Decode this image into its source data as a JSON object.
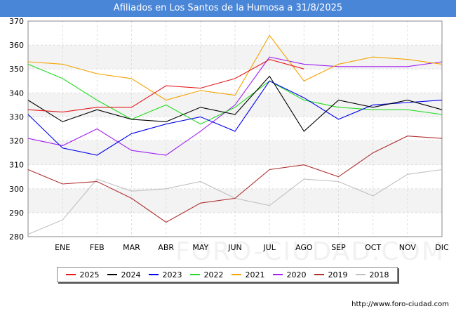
{
  "title": "Afiliados en Los Santos de la Humosa a 31/8/2025",
  "footer_url": "http://www.foro-ciudad.com",
  "watermark": "FORO-CIUDAD.COM",
  "chart_data": {
    "type": "line",
    "categories": [
      "",
      "ENE",
      "FEB",
      "MAR",
      "ABR",
      "MAY",
      "JUN",
      "JUL",
      "AGO",
      "SEP",
      "OCT",
      "NOV",
      "DIC"
    ],
    "ylim": [
      280,
      370
    ],
    "yticks": [
      280,
      290,
      300,
      310,
      320,
      330,
      340,
      350,
      360,
      370
    ],
    "grid": true,
    "legend_placement": "bottom",
    "series": [
      {
        "name": "2025",
        "color": "#e31a1c",
        "values": [
          333,
          332,
          334,
          334,
          343,
          342,
          346,
          354,
          350,
          null,
          null,
          null,
          null
        ]
      },
      {
        "name": "2024",
        "color": "#000000",
        "values": [
          337,
          328,
          333,
          329,
          328,
          334,
          331,
          347,
          324,
          337,
          334,
          337,
          333
        ]
      },
      {
        "name": "2023",
        "color": "#0000ee",
        "values": [
          331,
          317,
          314,
          323,
          327,
          330,
          324,
          345,
          338,
          329,
          335,
          336,
          337
        ]
      },
      {
        "name": "2022",
        "color": "#22dd22",
        "values": [
          352,
          346,
          337,
          329,
          335,
          327,
          334,
          345,
          337,
          334,
          333,
          333,
          331
        ]
      },
      {
        "name": "2021",
        "color": "#f5a300",
        "values": [
          353,
          352,
          348,
          346,
          337,
          341,
          339,
          364,
          345,
          352,
          355,
          354,
          352
        ]
      },
      {
        "name": "2020",
        "color": "#a020f0",
        "values": [
          321,
          318,
          325,
          316,
          314,
          324,
          335,
          355,
          352,
          351,
          351,
          351,
          353
        ]
      },
      {
        "name": "2019",
        "color": "#b03030",
        "values": [
          308,
          302,
          303,
          296,
          286,
          294,
          296,
          308,
          310,
          305,
          315,
          322,
          321
        ]
      },
      {
        "name": "2018",
        "color": "#c0c0c0",
        "values": [
          281,
          287,
          304,
          299,
          300,
          303,
          296,
          293,
          304,
          303,
          297,
          306,
          308
        ]
      }
    ]
  }
}
